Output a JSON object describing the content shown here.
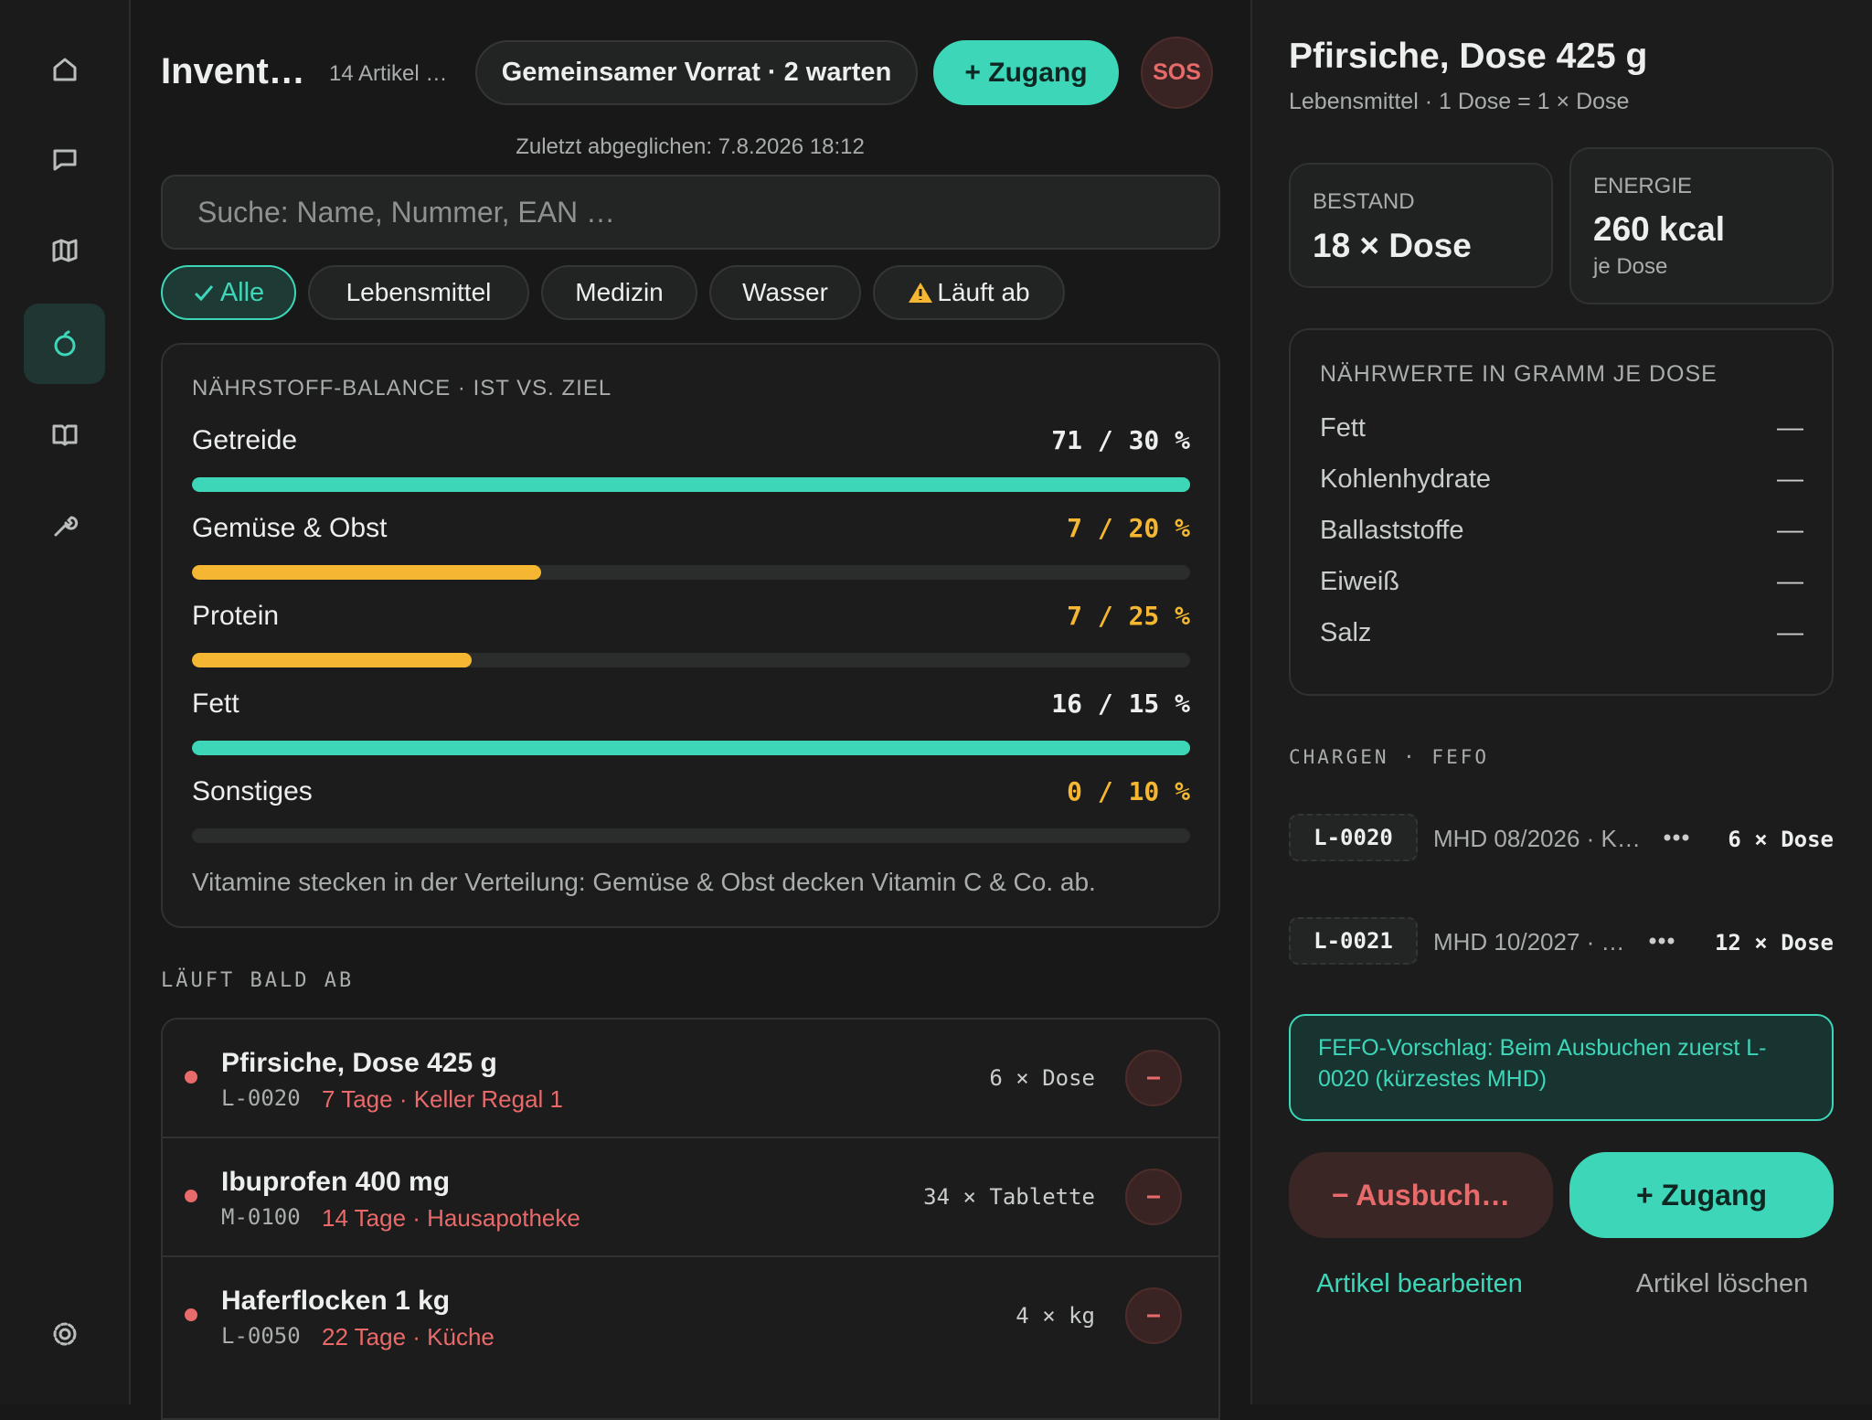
{
  "header": {
    "title": "Invent…",
    "count": "14 Artikel …",
    "shared": "Gemeinsamer Vorrat · 2 warten",
    "add": "+ Zugang",
    "sos": "SOS",
    "synced": "Zuletzt abgeglichen: 7.8.2026 18:12"
  },
  "search": {
    "placeholder": "Suche: Name, Nummer, EAN …"
  },
  "filters": [
    "Alle",
    "Lebensmittel",
    "Medizin",
    "Wasser",
    "Läuft ab"
  ],
  "balance": {
    "title": "NÄHRSTOFF-BALANCE · IST VS. ZIEL",
    "rows": [
      {
        "name": "Getreide",
        "value": 71,
        "target": 30,
        "value_label": "71 / 30 %",
        "color": "#3dd6b8"
      },
      {
        "name": "Gemüse & Obst",
        "value": 7,
        "target": 20,
        "value_label": "7 / 20 %",
        "color": "#f5b731"
      },
      {
        "name": "Protein",
        "value": 7,
        "target": 25,
        "value_label": "7 / 25 %",
        "color": "#f5b731"
      },
      {
        "name": "Fett",
        "value": 16,
        "target": 15,
        "value_label": "16 / 15 %",
        "color": "#3dd6b8"
      },
      {
        "name": "Sonstiges",
        "value": 0,
        "target": 10,
        "value_label": "0 / 10 %",
        "color": "#f5b731"
      }
    ],
    "note": "Vitamine stecken in der Verteilung: Gemüse & Obst decken Vitamin C & Co. ab."
  },
  "expiring": {
    "title": "LÄUFT BALD AB",
    "items": [
      {
        "name": "Pfirsiche, Dose 425 g",
        "code": "L-0020",
        "info": "7 Tage · Keller Regal 1",
        "qty": "6 × Dose"
      },
      {
        "name": "Ibuprofen 400 mg",
        "code": "M-0100",
        "info": "14 Tage · Hausapotheke",
        "qty": "34 × Tablette"
      },
      {
        "name": "Haferflocken 1 kg",
        "code": "L-0050",
        "info": "22 Tage · Küche",
        "qty": "4 × kg"
      }
    ]
  },
  "detail": {
    "title": "Pfirsiche, Dose 425 g",
    "subtitle": "Lebensmittel · 1 Dose = 1 × Dose",
    "stock_label": "BESTAND",
    "stock": "18 × Dose",
    "energy_label": "ENERGIE",
    "energy": "260 kcal",
    "energy_unit": "je Dose",
    "nutrition_title": "NÄHRWERTE IN GRAMM JE DOSE",
    "nutrition": [
      {
        "name": "Fett",
        "value": "—"
      },
      {
        "name": "Kohlenhydrate",
        "value": "—"
      },
      {
        "name": "Ballaststoffe",
        "value": "—"
      },
      {
        "name": "Eiweiß",
        "value": "—"
      },
      {
        "name": "Salz",
        "value": "—"
      }
    ],
    "batches_title": "CHARGEN · FEFO",
    "batches": [
      {
        "code": "L-0020",
        "info": "MHD 08/2026 · K…",
        "qty": "6 × Dose"
      },
      {
        "code": "L-0021",
        "info": "MHD 10/2027 · …",
        "qty": "12 × Dose"
      }
    ],
    "fefo": "FEFO-Vorschlag: Beim Ausbuchen zuerst L-0020 (kürzestes MHD)",
    "remove": "− Ausbuch…",
    "add": "+ Zugang",
    "edit": "Artikel bearbeiten",
    "delete": "Artikel löschen"
  }
}
